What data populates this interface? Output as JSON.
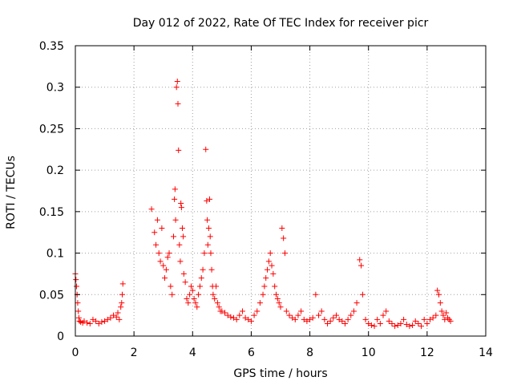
{
  "chart_data": {
    "type": "scatter",
    "title": "Day 012 of 2022, Rate Of TEC Index for receiver picr",
    "xlabel": "GPS time / hours",
    "ylabel": "ROTI / TECUs",
    "xlim": [
      0,
      14
    ],
    "ylim": [
      0,
      0.35
    ],
    "x_ticks": [
      "0",
      "2",
      "4",
      "6",
      "8",
      "10",
      "12",
      "14"
    ],
    "y_ticks": [
      "0",
      "0.05",
      "0.1",
      "0.15",
      "0.2",
      "0.25",
      "0.3",
      "0.35"
    ],
    "grid": true,
    "marker": "+",
    "colors": {
      "points": "#ff0000",
      "grid": "#a0a0a0",
      "axes": "#000000"
    },
    "series": [
      {
        "name": "ROTI",
        "x": [
          0.0,
          0.02,
          0.04,
          0.06,
          0.08,
          0.1,
          0.12,
          0.14,
          0.18,
          0.25,
          0.3,
          0.4,
          0.5,
          0.6,
          0.7,
          0.8,
          0.9,
          1.0,
          1.1,
          1.2,
          1.3,
          1.4,
          1.45,
          1.5,
          1.55,
          1.58,
          1.6,
          1.62,
          2.6,
          2.7,
          2.75,
          2.8,
          2.85,
          2.9,
          2.95,
          3.0,
          3.05,
          3.1,
          3.15,
          3.2,
          3.25,
          3.3,
          3.35,
          3.38,
          3.4,
          3.42,
          3.45,
          3.48,
          3.5,
          3.52,
          3.55,
          3.58,
          3.6,
          3.62,
          3.65,
          3.68,
          3.7,
          3.75,
          3.8,
          3.85,
          3.9,
          3.95,
          4.0,
          4.05,
          4.1,
          4.15,
          4.2,
          4.25,
          4.3,
          4.35,
          4.4,
          4.45,
          4.48,
          4.5,
          4.52,
          4.55,
          4.58,
          4.6,
          4.62,
          4.65,
          4.68,
          4.7,
          4.75,
          4.8,
          4.85,
          4.9,
          4.95,
          5.0,
          5.1,
          5.2,
          5.3,
          5.4,
          5.5,
          5.6,
          5.7,
          5.8,
          5.9,
          6.0,
          6.1,
          6.2,
          6.3,
          6.4,
          6.45,
          6.5,
          6.55,
          6.6,
          6.65,
          6.7,
          6.75,
          6.8,
          6.85,
          6.9,
          6.95,
          7.0,
          7.05,
          7.1,
          7.15,
          7.2,
          7.3,
          7.4,
          7.5,
          7.6,
          7.7,
          7.8,
          7.9,
          8.0,
          8.1,
          8.2,
          8.3,
          8.4,
          8.5,
          8.6,
          8.7,
          8.8,
          8.9,
          9.0,
          9.1,
          9.2,
          9.3,
          9.4,
          9.5,
          9.6,
          9.7,
          9.75,
          9.8,
          9.9,
          10.0,
          10.1,
          10.2,
          10.3,
          10.4,
          10.5,
          10.6,
          10.7,
          10.8,
          10.9,
          11.0,
          11.1,
          11.2,
          11.3,
          11.4,
          11.5,
          11.6,
          11.7,
          11.8,
          11.9,
          12.0,
          12.1,
          12.2,
          12.3,
          12.35,
          12.4,
          12.45,
          12.5,
          12.55,
          12.6,
          12.65,
          12.7,
          12.75,
          12.8
        ],
        "y": [
          0.075,
          0.068,
          0.06,
          0.05,
          0.04,
          0.03,
          0.022,
          0.018,
          0.017,
          0.016,
          0.018,
          0.016,
          0.015,
          0.02,
          0.018,
          0.015,
          0.017,
          0.018,
          0.02,
          0.022,
          0.025,
          0.023,
          0.028,
          0.02,
          0.035,
          0.04,
          0.05,
          0.063,
          0.153,
          0.125,
          0.11,
          0.14,
          0.1,
          0.09,
          0.13,
          0.085,
          0.07,
          0.08,
          0.095,
          0.1,
          0.06,
          0.05,
          0.12,
          0.165,
          0.177,
          0.14,
          0.3,
          0.307,
          0.28,
          0.224,
          0.11,
          0.09,
          0.16,
          0.155,
          0.13,
          0.12,
          0.075,
          0.065,
          0.045,
          0.04,
          0.05,
          0.06,
          0.055,
          0.045,
          0.04,
          0.035,
          0.05,
          0.06,
          0.07,
          0.08,
          0.1,
          0.225,
          0.163,
          0.14,
          0.11,
          0.13,
          0.165,
          0.12,
          0.1,
          0.08,
          0.06,
          0.05,
          0.045,
          0.06,
          0.04,
          0.035,
          0.03,
          0.03,
          0.028,
          0.025,
          0.023,
          0.022,
          0.02,
          0.025,
          0.03,
          0.022,
          0.02,
          0.018,
          0.025,
          0.03,
          0.04,
          0.05,
          0.06,
          0.07,
          0.08,
          0.09,
          0.1,
          0.085,
          0.075,
          0.06,
          0.05,
          0.045,
          0.04,
          0.035,
          0.13,
          0.118,
          0.1,
          0.03,
          0.025,
          0.022,
          0.02,
          0.025,
          0.03,
          0.02,
          0.018,
          0.02,
          0.022,
          0.05,
          0.025,
          0.03,
          0.02,
          0.015,
          0.018,
          0.022,
          0.025,
          0.02,
          0.018,
          0.015,
          0.02,
          0.025,
          0.03,
          0.04,
          0.092,
          0.085,
          0.05,
          0.02,
          0.015,
          0.013,
          0.012,
          0.02,
          0.015,
          0.025,
          0.03,
          0.018,
          0.015,
          0.012,
          0.013,
          0.015,
          0.02,
          0.014,
          0.012,
          0.013,
          0.018,
          0.015,
          0.012,
          0.02,
          0.015,
          0.02,
          0.022,
          0.025,
          0.055,
          0.05,
          0.04,
          0.03,
          0.025,
          0.02,
          0.028,
          0.022,
          0.02,
          0.018
        ]
      }
    ]
  }
}
